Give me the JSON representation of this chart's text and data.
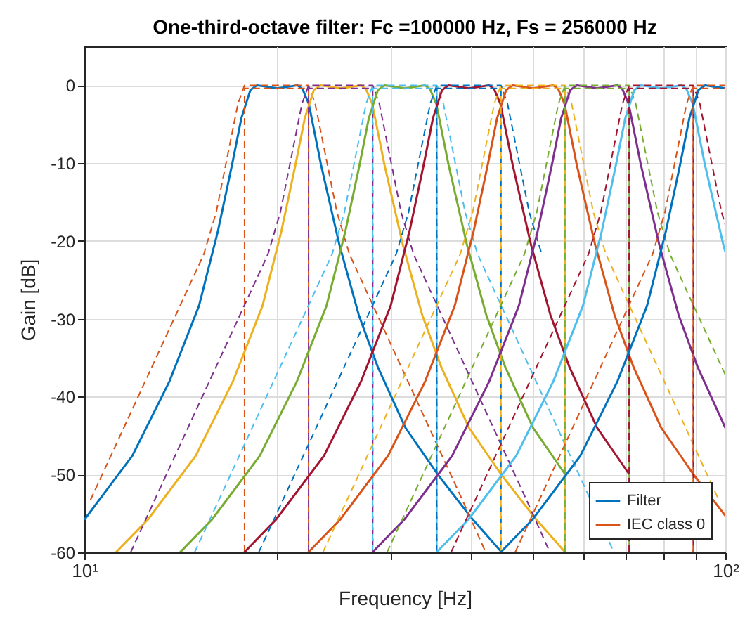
{
  "chart_data": {
    "type": "line",
    "title": "One-third-octave filter: Fc =100000 Hz, Fs = 256000 Hz",
    "xlabel": "Frequency [Hz]",
    "ylabel": "Gain [dB]",
    "log": "x",
    "xlim": [
      10,
      100
    ],
    "ylim": [
      -60,
      5
    ],
    "xticks": [
      {
        "value": 10,
        "label": "10¹"
      },
      {
        "value": 20,
        "label": null
      },
      {
        "value": 30,
        "label": null
      },
      {
        "value": 40,
        "label": null
      },
      {
        "value": 50,
        "label": null
      },
      {
        "value": 60,
        "label": null
      },
      {
        "value": 70,
        "label": null
      },
      {
        "value": 80,
        "label": null
      },
      {
        "value": 90,
        "label": null
      },
      {
        "value": 100,
        "label": "10²"
      }
    ],
    "yticks": [
      -60,
      -50,
      -40,
      -30,
      -20,
      -10,
      0
    ],
    "grid": true,
    "legend": "bottom right",
    "series": [
      {
        "name": "Filter",
        "color": "#0072bd",
        "line_style": "solid",
        "x": [
          10,
          11.88,
          13.58,
          15.1,
          16.16,
          17,
          17.58,
          18.16,
          18.6,
          20,
          21.5,
          21.9,
          22.4,
          23.4,
          25,
          26.8,
          28.7,
          31.7,
          35.6,
          40.1,
          44.8
        ],
        "values": [
          -55.8,
          -47.6,
          -38,
          -28.3,
          -18.7,
          -10.2,
          -4.2,
          -0.6,
          0,
          -0.4,
          0,
          -0.5,
          -2.4,
          -10.2,
          -20.5,
          -29.5,
          -36.2,
          -44,
          -50,
          -55.5,
          -60
        ]
      },
      {
        "name": "IEC class 0",
        "color": "#d95319",
        "line_style": "dashed",
        "x": [
          10.22,
          15.36,
          16.06,
          17.36,
          17.78,
          22.38,
          22.92,
          24.78,
          25.92,
          38.9,
          42.29
        ],
        "values": [
          -53.3,
          -21.7,
          -16.3,
          -2.4,
          0,
          0,
          -2.4,
          -16.3,
          -21.7,
          -53.3,
          -60
        ]
      },
      {
        "color": "#d95319",
        "line_style": "dashed",
        "x": [
          17.78,
          17.78,
          22.38,
          22.38
        ],
        "values": [
          -60,
          -0.4,
          -0.4,
          -60
        ]
      },
      {
        "color": "#edb120",
        "line_style": "solid",
        "x": [
          11.2,
          12.56,
          14.92,
          17.06,
          18.97,
          20.3,
          21.35,
          22.08,
          22.81,
          23.36,
          25.12,
          27,
          27.51,
          28.13,
          29.39,
          31.4,
          33.66,
          36.05,
          39.82,
          44.71,
          50.37,
          56.27
        ],
        "values": [
          -60,
          -55.8,
          -47.6,
          -38,
          -28.3,
          -18.7,
          -10.2,
          -4.2,
          -0.6,
          0,
          -0.4,
          0,
          -0.5,
          -2.4,
          -10.2,
          -20.5,
          -29.5,
          -36.2,
          -44,
          -50,
          -55.5,
          -60
        ]
      },
      {
        "color": "#7e2f8e",
        "line_style": "dashed",
        "x": [
          11.81,
          12.87,
          19.34,
          20.22,
          21.85,
          22.38,
          28.18,
          28.86,
          31.2,
          32.63,
          48.98,
          53.25
        ],
        "values": [
          -60,
          -53.3,
          -21.7,
          -16.3,
          -2.4,
          0,
          0,
          -2.4,
          -16.3,
          -21.7,
          -53.3,
          -60
        ]
      },
      {
        "color": "#7e2f8e",
        "line_style": "dashed",
        "x": [
          22.38,
          22.38,
          28.18,
          28.18
        ],
        "values": [
          -60,
          -0.4,
          -0.4,
          -60
        ]
      },
      {
        "color": "#77ac30",
        "line_style": "solid",
        "x": [
          14.1,
          15.81,
          18.78,
          21.47,
          23.87,
          25.55,
          26.88,
          27.79,
          28.71,
          29.41,
          31.62,
          33.99,
          34.62,
          35.41,
          37,
          39.53,
          42.37,
          45.37,
          50.12,
          56.28
        ],
        "values": [
          -60,
          -55.8,
          -47.6,
          -38,
          -28.3,
          -18.7,
          -10.2,
          -4.2,
          -0.6,
          0,
          -0.4,
          0,
          -0.5,
          -2.4,
          -10.2,
          -20.5,
          -29.5,
          -36.2,
          -44,
          -50
        ]
      },
      {
        "color": "#4dbeee",
        "line_style": "dashed",
        "x": [
          14.86,
          16.21,
          24.35,
          25.45,
          27.51,
          28.17,
          35.48,
          36.33,
          39.27,
          41.07,
          61.66,
          67.03
        ],
        "values": [
          -60,
          -53.3,
          -21.7,
          -16.3,
          -2.4,
          0,
          0,
          -2.4,
          -16.3,
          -21.7,
          -53.3,
          -60
        ]
      },
      {
        "color": "#4dbeee",
        "line_style": "dashed",
        "x": [
          28.17,
          28.17,
          35.48,
          35.48
        ],
        "values": [
          -60,
          -0.4,
          -0.4,
          -60
        ]
      },
      {
        "color": "#a2142f",
        "line_style": "solid",
        "x": [
          17.76,
          19.9,
          23.65,
          27.03,
          30.06,
          32.17,
          33.84,
          34.99,
          36.15,
          37.02,
          39.81,
          42.8,
          43.59,
          44.59,
          46.58,
          49.76,
          53.35,
          57.13,
          63.1,
          70.86
        ],
        "values": [
          -60,
          -55.8,
          -47.6,
          -38,
          -28.3,
          -18.7,
          -10.2,
          -4.2,
          -0.6,
          0,
          -0.4,
          0,
          -0.5,
          -2.4,
          -10.2,
          -20.5,
          -29.5,
          -36.2,
          -44,
          -50
        ]
      },
      {
        "color": "#0072bd",
        "line_style": "dashed",
        "x": [
          18.71,
          20.4,
          30.65,
          32.05,
          34.63,
          35.47,
          44.67,
          45.74,
          49.44,
          51.71
        ],
        "values": [
          -60,
          -53.3,
          -21.7,
          -16.3,
          -2.4,
          0,
          0,
          -2.4,
          -16.3,
          -21.7
        ]
      },
      {
        "color": "#0072bd",
        "line_style": "dashed",
        "x": [
          35.47,
          35.47,
          44.67,
          44.67
        ],
        "values": [
          -60,
          -0.4,
          -0.4,
          -60
        ]
      },
      {
        "color": "#d95319",
        "line_style": "solid",
        "x": [
          22.35,
          25.06,
          29.77,
          34.03,
          37.84,
          40.5,
          42.6,
          44.06,
          45.51,
          46.61,
          50.12,
          53.88,
          54.88,
          56.13,
          58.64,
          62.65,
          67.16,
          71.92,
          79.44,
          89.21,
          100
        ],
        "values": [
          -60,
          -55.8,
          -47.6,
          -38,
          -28.3,
          -18.7,
          -10.2,
          -4.2,
          -0.6,
          0,
          -0.4,
          0,
          -0.5,
          -2.4,
          -10.2,
          -20.5,
          -29.5,
          -36.2,
          -44,
          -50,
          -55.3
        ]
      },
      {
        "color": "#edb120",
        "line_style": "dashed",
        "x": [
          23.56,
          25.69,
          38.59,
          40.35,
          43.6,
          44.66,
          56.23,
          57.59,
          62.25,
          65.11,
          97.73
        ],
        "values": [
          -60,
          -53.3,
          -21.7,
          -16.3,
          -2.4,
          0,
          0,
          -2.4,
          -16.3,
          -21.7,
          -53.3
        ]
      },
      {
        "color": "#edb120",
        "line_style": "dashed",
        "x": [
          44.66,
          44.66,
          56.23,
          56.23
        ],
        "values": [
          -60,
          -0.4,
          -0.4,
          -60
        ]
      },
      {
        "color": "#7e2f8e",
        "line_style": "solid",
        "x": [
          28.14,
          31.55,
          37.48,
          42.84,
          47.64,
          50.98,
          53.64,
          55.46,
          57.29,
          58.68,
          63.1,
          67.83,
          69.09,
          70.67,
          73.83,
          78.88,
          84.55,
          90.55,
          100
        ],
        "values": [
          -60,
          -55.8,
          -47.6,
          -38,
          -28.3,
          -18.7,
          -10.2,
          -4.2,
          -0.6,
          0,
          -0.4,
          0,
          -0.5,
          -2.4,
          -10.2,
          -20.5,
          -29.5,
          -36.2,
          -44
        ]
      },
      {
        "color": "#77ac30",
        "line_style": "dashed",
        "x": [
          29.66,
          32.34,
          48.59,
          50.8,
          54.9,
          56.22,
          70.8,
          72.5,
          78.37,
          81.97,
          100
        ],
        "values": [
          -60,
          -53.3,
          -21.7,
          -16.3,
          -2.4,
          0,
          0,
          -2.4,
          -16.3,
          -21.7,
          -37.2
        ]
      },
      {
        "color": "#77ac30",
        "line_style": "dashed",
        "x": [
          56.22,
          56.22,
          70.8,
          70.8
        ],
        "values": [
          -60,
          -0.4,
          -0.4,
          -60
        ]
      },
      {
        "color": "#4dbeee",
        "line_style": "solid",
        "x": [
          35.43,
          39.72,
          47.18,
          53.93,
          59.97,
          64.18,
          67.52,
          69.82,
          72.12,
          73.87,
          79.43,
          85.39,
          86.98,
          88.96,
          92.93,
          99.29,
          100
        ],
        "values": [
          -60,
          -55.8,
          -47.6,
          -38,
          -28.3,
          -18.7,
          -10.2,
          -4.2,
          -0.6,
          0,
          -0.4,
          0,
          -0.5,
          -2.4,
          -10.2,
          -20.5,
          -21.4
        ]
      },
      {
        "color": "#a2142f",
        "line_style": "dashed",
        "x": [
          37.33,
          40.71,
          61.16,
          63.94,
          69.1,
          70.77,
          89.12,
          91.27,
          98.65,
          100
        ],
        "values": [
          -60,
          -53.3,
          -21.7,
          -16.3,
          -2.4,
          0,
          0,
          -2.4,
          -16.3,
          -17.9
        ]
      },
      {
        "color": "#a2142f",
        "line_style": "dashed",
        "x": [
          70.77,
          70.77,
          89.12,
          89.12
        ],
        "values": [
          -60,
          -0.4,
          -0.4,
          -60
        ]
      },
      {
        "color": "#0072bd",
        "line_style": "solid",
        "x": [
          44.6,
          50,
          59.4,
          67.9,
          75.5,
          80.8,
          85,
          87.9,
          90.8,
          93,
          100
        ],
        "values": [
          -60,
          -55.8,
          -47.6,
          -38,
          -28.3,
          -18.7,
          -10.2,
          -4.2,
          -0.6,
          0,
          -0.4
        ]
      },
      {
        "color": "#d95319",
        "line_style": "dashed",
        "x": [
          47,
          51.25,
          77,
          80.5,
          87,
          89.1,
          100
        ],
        "values": [
          -60,
          -53.3,
          -21.7,
          -16.3,
          -2.4,
          0,
          0
        ]
      },
      {
        "color": "#d95319",
        "line_style": "dashed",
        "x": [
          89.1,
          89.1,
          100
        ],
        "values": [
          -60,
          -0.4,
          -0.4
        ]
      }
    ]
  }
}
